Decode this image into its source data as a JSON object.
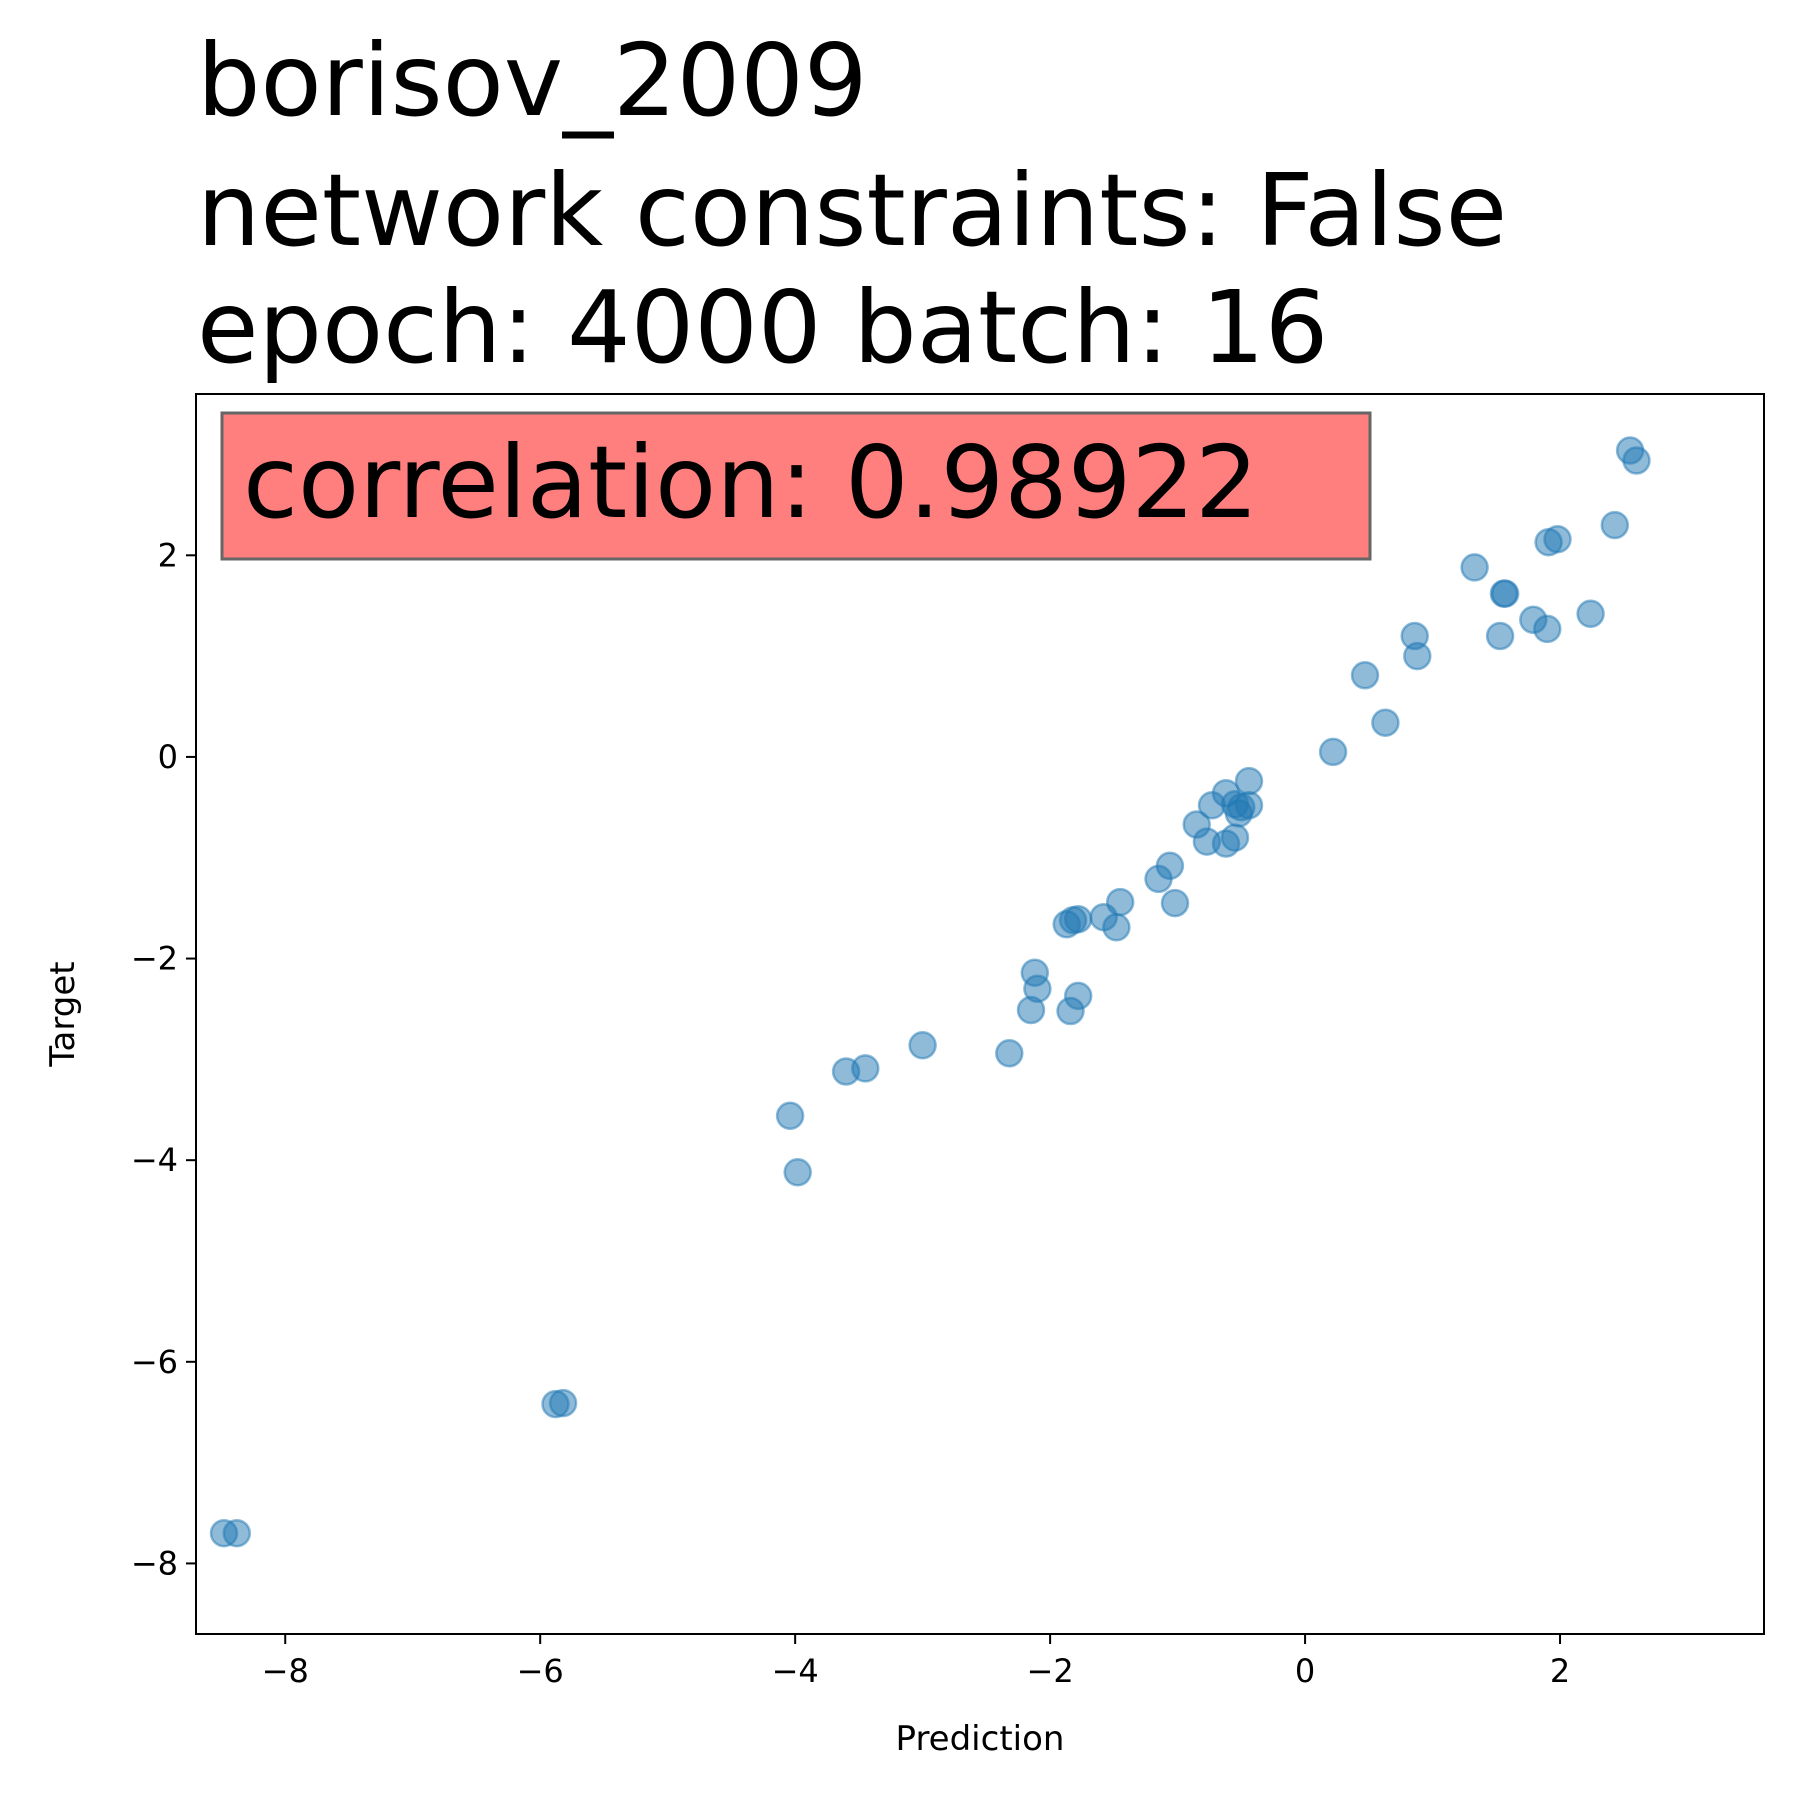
{
  "chart_data": {
    "type": "scatter",
    "title_lines": [
      "borisov_2009",
      "network constraints: False",
      "epoch: 4000 batch: 16"
    ],
    "xlabel": "Prediction",
    "ylabel": "Target",
    "xlim": [
      -8.7,
      3.6
    ],
    "ylim": [
      -8.7,
      3.6
    ],
    "xticks": [
      -8,
      -6,
      -4,
      -2,
      0,
      2
    ],
    "yticks": [
      -8,
      -6,
      -4,
      -2,
      0,
      2
    ],
    "xtick_labels": [
      "−8",
      "−6",
      "−4",
      "−2",
      "0",
      "2"
    ],
    "ytick_labels": [
      "−8",
      "−6",
      "−4",
      "−2",
      "0",
      "2"
    ],
    "annotation": "correlation: 0.98922",
    "annotation_color": "#ff7f7f",
    "point_color": "#1f77b4",
    "grid": false,
    "points": [
      {
        "x": -8.48,
        "y": -7.7
      },
      {
        "x": -8.38,
        "y": -7.7
      },
      {
        "x": -5.88,
        "y": -6.42
      },
      {
        "x": -5.82,
        "y": -6.41
      },
      {
        "x": -4.04,
        "y": -3.56
      },
      {
        "x": -3.98,
        "y": -4.12
      },
      {
        "x": -3.6,
        "y": -3.12
      },
      {
        "x": -3.45,
        "y": -3.09
      },
      {
        "x": -3.0,
        "y": -2.86
      },
      {
        "x": -2.32,
        "y": -2.94
      },
      {
        "x": -2.15,
        "y": -2.51
      },
      {
        "x": -2.12,
        "y": -2.14
      },
      {
        "x": -2.1,
        "y": -2.3
      },
      {
        "x": -1.84,
        "y": -2.52
      },
      {
        "x": -1.78,
        "y": -2.37
      },
      {
        "x": -1.87,
        "y": -1.66
      },
      {
        "x": -1.82,
        "y": -1.62
      },
      {
        "x": -1.78,
        "y": -1.61
      },
      {
        "x": -1.58,
        "y": -1.59
      },
      {
        "x": -1.48,
        "y": -1.69
      },
      {
        "x": -1.45,
        "y": -1.44
      },
      {
        "x": -1.15,
        "y": -1.21
      },
      {
        "x": -1.06,
        "y": -1.08
      },
      {
        "x": -1.02,
        "y": -1.45
      },
      {
        "x": -0.85,
        "y": -0.67
      },
      {
        "x": -0.77,
        "y": -0.84
      },
      {
        "x": -0.73,
        "y": -0.48
      },
      {
        "x": -0.62,
        "y": -0.36
      },
      {
        "x": -0.62,
        "y": -0.86
      },
      {
        "x": -0.55,
        "y": -0.8
      },
      {
        "x": -0.55,
        "y": -0.47
      },
      {
        "x": -0.52,
        "y": -0.56
      },
      {
        "x": -0.5,
        "y": -0.5
      },
      {
        "x": -0.44,
        "y": -0.48
      },
      {
        "x": -0.44,
        "y": -0.24
      },
      {
        "x": 0.22,
        "y": 0.05
      },
      {
        "x": 0.47,
        "y": 0.81
      },
      {
        "x": 0.63,
        "y": 0.34
      },
      {
        "x": 0.86,
        "y": 1.2
      },
      {
        "x": 0.88,
        "y": 1.0
      },
      {
        "x": 1.33,
        "y": 1.88
      },
      {
        "x": 1.53,
        "y": 1.2
      },
      {
        "x": 1.56,
        "y": 1.62
      },
      {
        "x": 1.57,
        "y": 1.62
      },
      {
        "x": 1.79,
        "y": 1.36
      },
      {
        "x": 1.9,
        "y": 1.27
      },
      {
        "x": 1.91,
        "y": 2.13
      },
      {
        "x": 1.98,
        "y": 2.16
      },
      {
        "x": 2.24,
        "y": 1.42
      },
      {
        "x": 2.43,
        "y": 2.3
      },
      {
        "x": 2.55,
        "y": 3.04
      },
      {
        "x": 2.6,
        "y": 2.94
      }
    ]
  }
}
